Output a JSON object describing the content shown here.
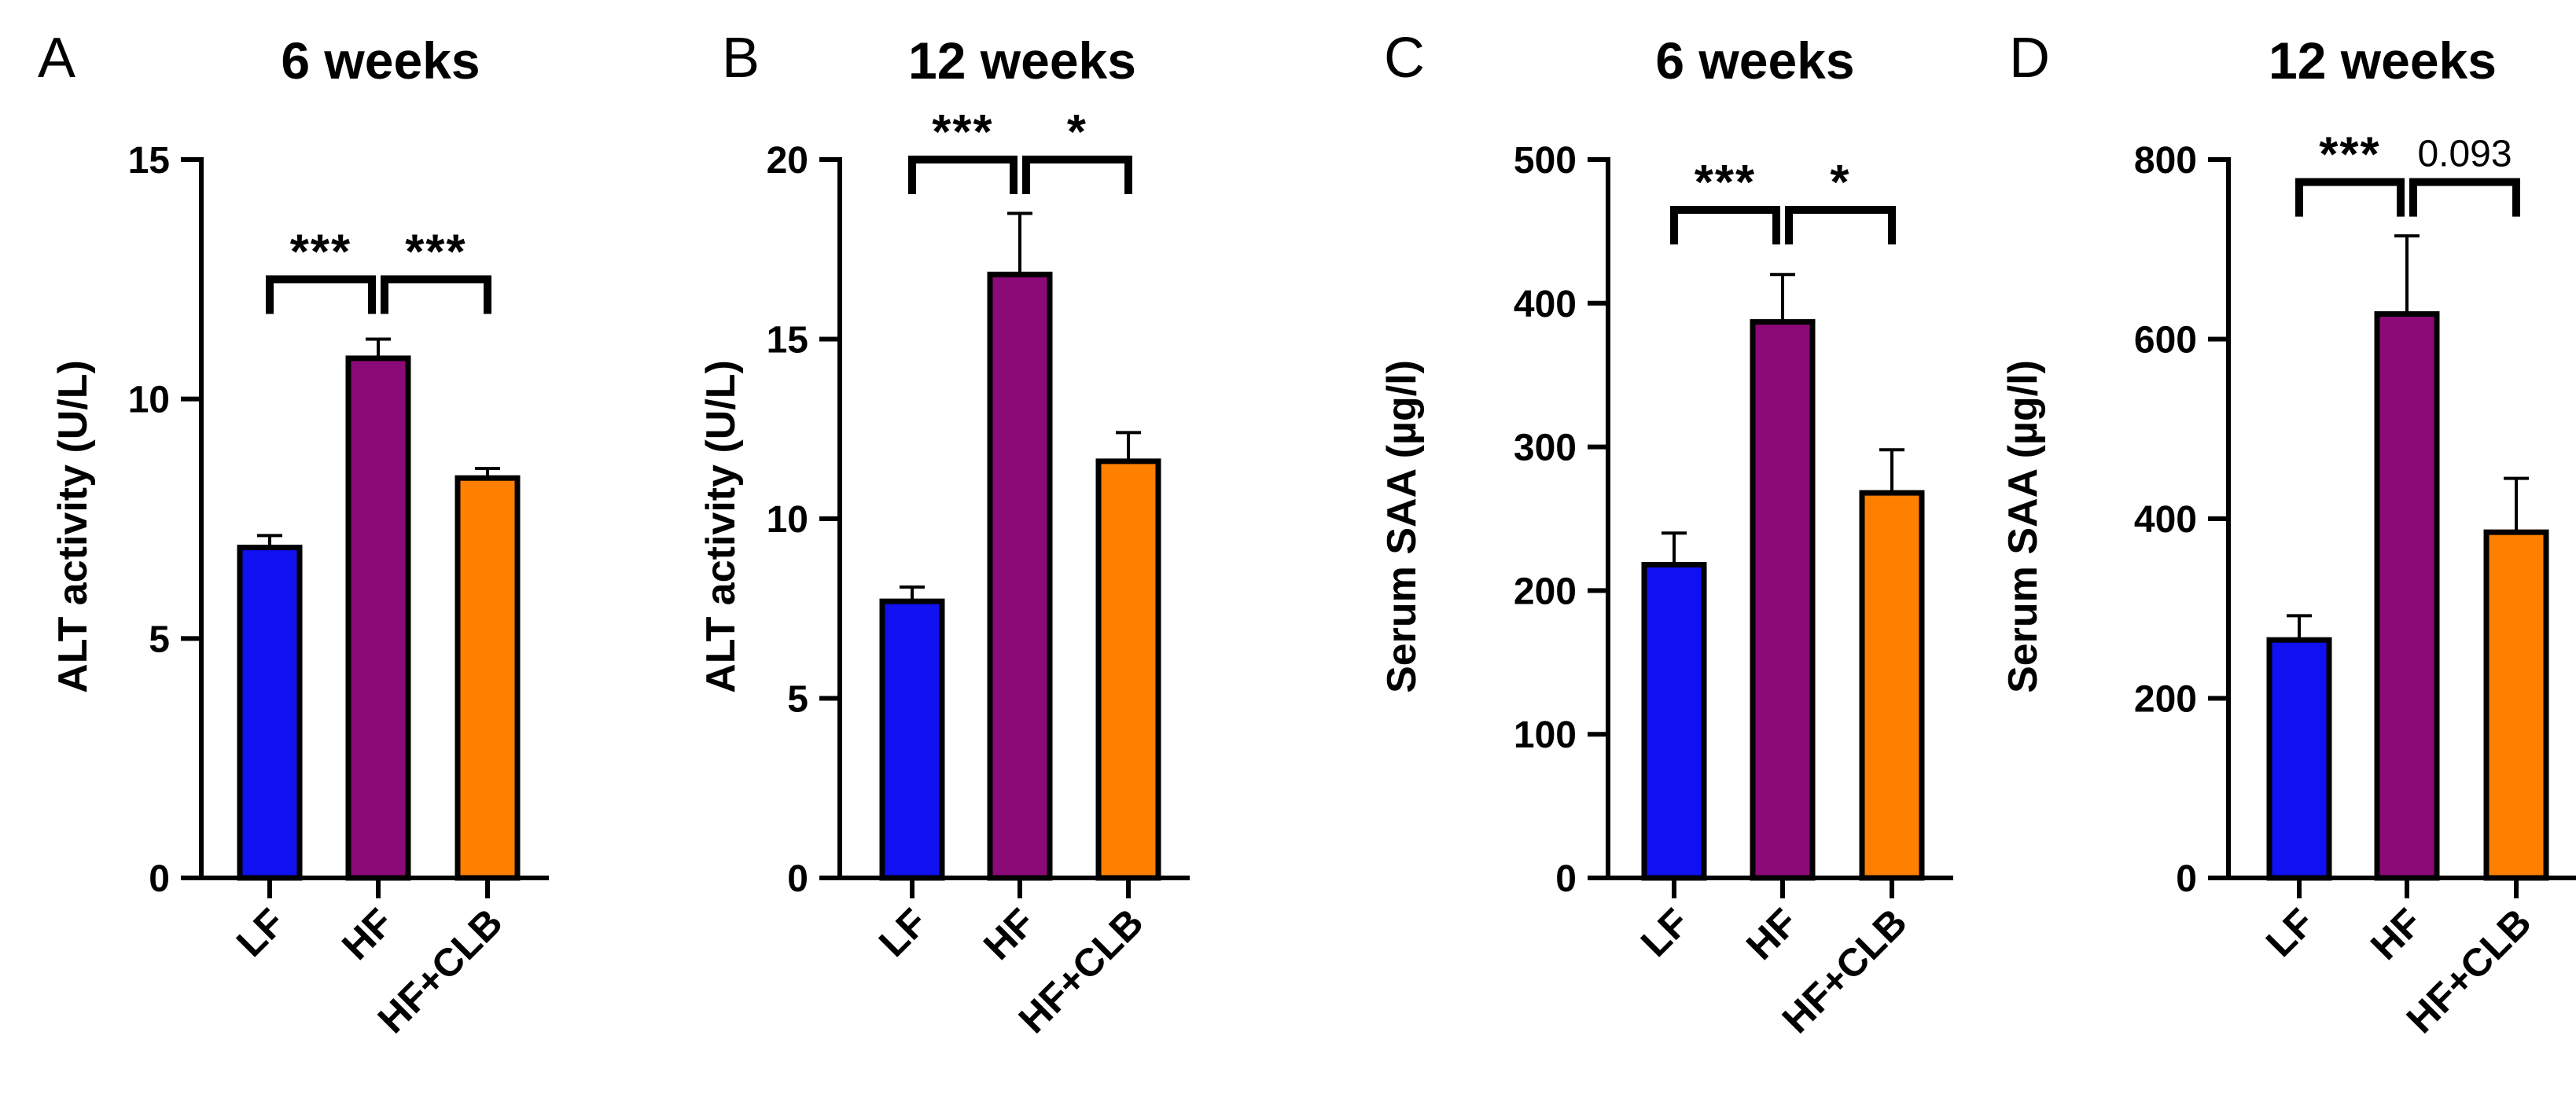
{
  "chart_data": [
    {
      "type": "bar",
      "panel": "A",
      "title": "6 weeks",
      "xlabel": "",
      "ylabel": "ALT activity (U/L)",
      "ylim": [
        0,
        15
      ],
      "yticks": [
        0,
        5,
        10,
        15
      ],
      "categories": [
        "LF",
        "HF",
        "HF+CLB"
      ],
      "values": [
        6.9,
        10.85,
        8.35
      ],
      "errors": [
        0.25,
        0.4,
        0.2
      ],
      "colors": [
        "#1010f0",
        "#8c0a78",
        "#ff8000"
      ],
      "comparisons": [
        {
          "from": 0,
          "to": 1,
          "label": "***",
          "bracket_y": 12.5
        },
        {
          "from": 1,
          "to": 2,
          "label": "***",
          "bracket_y": 12.5
        }
      ]
    },
    {
      "type": "bar",
      "panel": "B",
      "title": "12 weeks",
      "xlabel": "",
      "ylabel": "ALT activity (U/L)",
      "ylim": [
        0,
        20
      ],
      "yticks": [
        0,
        5,
        10,
        15,
        20
      ],
      "categories": [
        "LF",
        "HF",
        "HF+CLB"
      ],
      "values": [
        7.7,
        16.8,
        11.6
      ],
      "errors": [
        0.4,
        1.7,
        0.8
      ],
      "colors": [
        "#1010f0",
        "#8c0a78",
        "#ff8000"
      ],
      "comparisons": [
        {
          "from": 0,
          "to": 1,
          "label": "***",
          "bracket_y": 20
        },
        {
          "from": 1,
          "to": 2,
          "label": "*",
          "bracket_y": 20
        }
      ]
    },
    {
      "type": "bar",
      "panel": "C",
      "title": "6 weeks",
      "xlabel": "",
      "ylabel": "Serum SAA (µg/l)",
      "ylim": [
        0,
        500
      ],
      "yticks": [
        0,
        100,
        200,
        300,
        400,
        500
      ],
      "categories": [
        "LF",
        "HF",
        "HF+CLB"
      ],
      "values": [
        218,
        387,
        268
      ],
      "errors": [
        22,
        33,
        30
      ],
      "colors": [
        "#1010f0",
        "#8c0a78",
        "#ff8000"
      ],
      "comparisons": [
        {
          "from": 0,
          "to": 1,
          "label": "***",
          "bracket_y": 465
        },
        {
          "from": 1,
          "to": 2,
          "label": "*",
          "bracket_y": 465
        }
      ]
    },
    {
      "type": "bar",
      "panel": "D",
      "title": "12 weeks",
      "xlabel": "",
      "ylabel": "Serum SAA (µg/l)",
      "ylim": [
        0,
        800
      ],
      "yticks": [
        0,
        200,
        400,
        600,
        800
      ],
      "categories": [
        "LF",
        "HF",
        "HF+CLB"
      ],
      "values": [
        265,
        628,
        385
      ],
      "errors": [
        27,
        87,
        60
      ],
      "colors": [
        "#1010f0",
        "#8c0a78",
        "#ff8000"
      ],
      "comparisons": [
        {
          "from": 0,
          "to": 1,
          "label": "***",
          "bracket_y": 775
        },
        {
          "from": 1,
          "to": 2,
          "label": "0.093",
          "bracket_y": 775
        }
      ]
    }
  ]
}
